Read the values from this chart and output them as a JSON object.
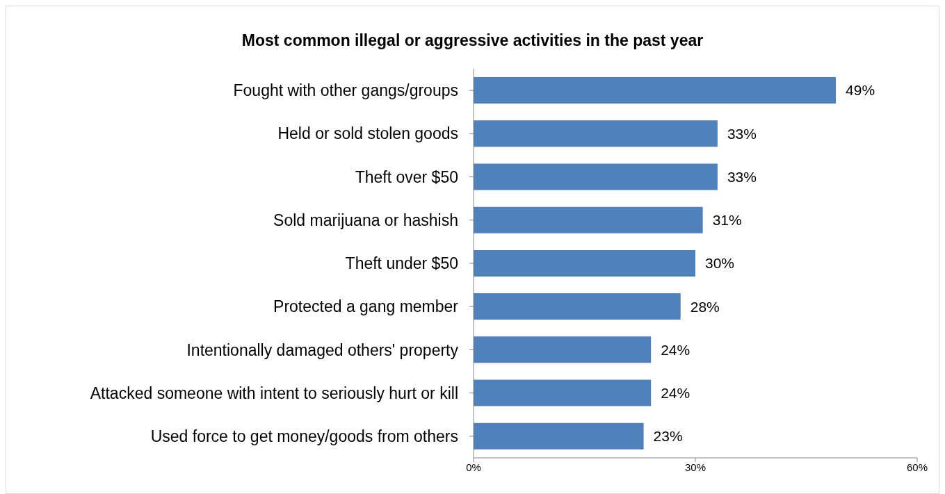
{
  "chart_data": {
    "type": "bar",
    "orientation": "horizontal",
    "title": "Most common illegal or aggressive activities in the past year",
    "categories": [
      "Fought with other gangs/groups",
      "Held or sold stolen goods",
      "Theft over $50",
      "Sold marijuana or hashish",
      "Theft under $50",
      "Protected a gang member",
      "Intentionally damaged others' property",
      "Attacked someone with intent to seriously hurt or kill",
      "Used force to get money/goods from others"
    ],
    "values": [
      49,
      33,
      33,
      31,
      30,
      28,
      24,
      24,
      23
    ],
    "value_labels": [
      "49%",
      "33%",
      "33%",
      "31%",
      "30%",
      "28%",
      "24%",
      "24%",
      "23%"
    ],
    "color": "#4f81bd",
    "xlim": [
      0,
      60
    ],
    "xticks": [
      {
        "value": 0,
        "label": "0%"
      },
      {
        "value": 30,
        "label": "30%"
      },
      {
        "value": 60,
        "label": "60%"
      }
    ],
    "grid": false
  }
}
